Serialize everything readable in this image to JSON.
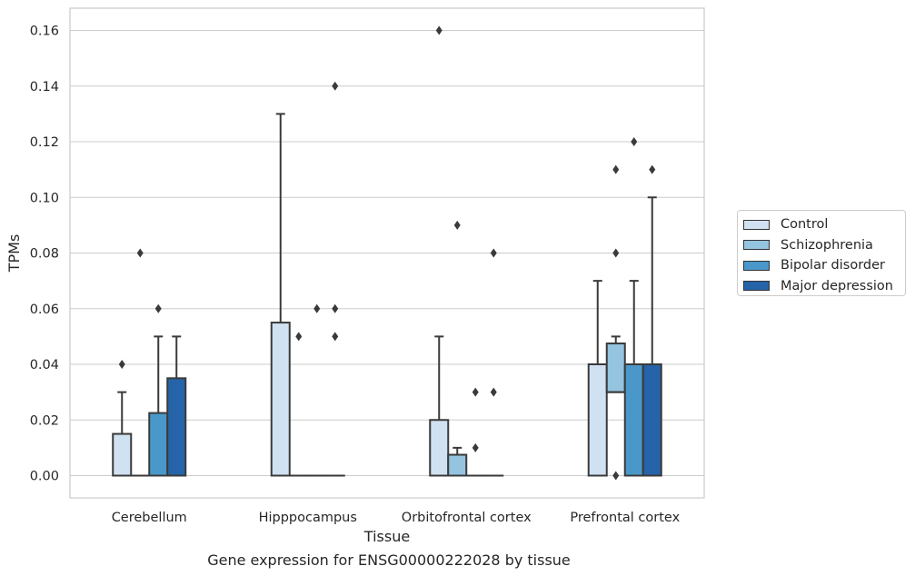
{
  "chart_data": {
    "type": "boxplot",
    "title": "Gene expression for ENSG00000222028 by tissue",
    "xlabel": "Tissue",
    "ylabel": "TPMs",
    "ylim": [
      -0.008,
      0.168
    ],
    "yticks": [
      "0.00",
      "0.02",
      "0.04",
      "0.06",
      "0.08",
      "0.10",
      "0.12",
      "0.14",
      "0.16"
    ],
    "grid": true,
    "legend_position": "right",
    "categories": [
      "Cerebellum",
      "Hipppocampus",
      "Orbitofrontal cortex",
      "Prefrontal cortex"
    ],
    "series": [
      {
        "name": "Control",
        "color": "#d0e1f2",
        "boxes": [
          {
            "q1": 0,
            "median": 0,
            "q3": 0.015,
            "whisker_low": 0,
            "whisker_high": 0.03,
            "outliers": [
              0.04
            ]
          },
          {
            "q1": 0,
            "median": 0,
            "q3": 0.055,
            "whisker_low": 0,
            "whisker_high": 0.13,
            "outliers": []
          },
          {
            "q1": 0,
            "median": 0,
            "q3": 0.02,
            "whisker_low": 0,
            "whisker_high": 0.05,
            "outliers": [
              0.16
            ]
          },
          {
            "q1": 0,
            "median": 0,
            "q3": 0.04,
            "whisker_low": 0,
            "whisker_high": 0.07,
            "outliers": []
          }
        ]
      },
      {
        "name": "Schizophrenia",
        "color": "#94c4df",
        "boxes": [
          {
            "q1": 0,
            "median": 0,
            "q3": 0,
            "whisker_low": 0,
            "whisker_high": 0,
            "outliers": [
              0.08
            ]
          },
          {
            "q1": 0,
            "median": 0,
            "q3": 0,
            "whisker_low": 0,
            "whisker_high": 0,
            "outliers": [
              0.05
            ]
          },
          {
            "q1": 0,
            "median": 0,
            "q3": 0.0075,
            "whisker_low": 0,
            "whisker_high": 0.01,
            "outliers": [
              0.09
            ]
          },
          {
            "q1": 0.03,
            "median": 0.03,
            "q3": 0.0475,
            "whisker_low": 0.03,
            "whisker_high": 0.05,
            "outliers": [
              0.0,
              0.08,
              0.11
            ]
          }
        ]
      },
      {
        "name": "Bipolar disorder",
        "color": "#4a98c9",
        "boxes": [
          {
            "q1": 0,
            "median": 0,
            "q3": 0.0225,
            "whisker_low": 0,
            "whisker_high": 0.05,
            "outliers": [
              0.06
            ]
          },
          {
            "q1": 0,
            "median": 0,
            "q3": 0,
            "whisker_low": 0,
            "whisker_high": 0,
            "outliers": [
              0.06
            ]
          },
          {
            "q1": 0,
            "median": 0,
            "q3": 0,
            "whisker_low": 0,
            "whisker_high": 0,
            "outliers": [
              0.01,
              0.03
            ]
          },
          {
            "q1": 0,
            "median": 0,
            "q3": 0.04,
            "whisker_low": 0,
            "whisker_high": 0.07,
            "outliers": [
              0.12
            ]
          }
        ]
      },
      {
        "name": "Major depression",
        "color": "#2564a8",
        "boxes": [
          {
            "q1": 0,
            "median": 0,
            "q3": 0.035,
            "whisker_low": 0,
            "whisker_high": 0.05,
            "outliers": []
          },
          {
            "q1": 0,
            "median": 0,
            "q3": 0,
            "whisker_low": 0,
            "whisker_high": 0,
            "outliers": [
              0.05,
              0.06,
              0.14
            ]
          },
          {
            "q1": 0,
            "median": 0,
            "q3": 0,
            "whisker_low": 0,
            "whisker_high": 0,
            "outliers": [
              0.03,
              0.08
            ]
          },
          {
            "q1": 0,
            "median": 0,
            "q3": 0.04,
            "whisker_low": 0,
            "whisker_high": 0.1,
            "outliers": [
              0.11
            ]
          }
        ]
      }
    ]
  }
}
